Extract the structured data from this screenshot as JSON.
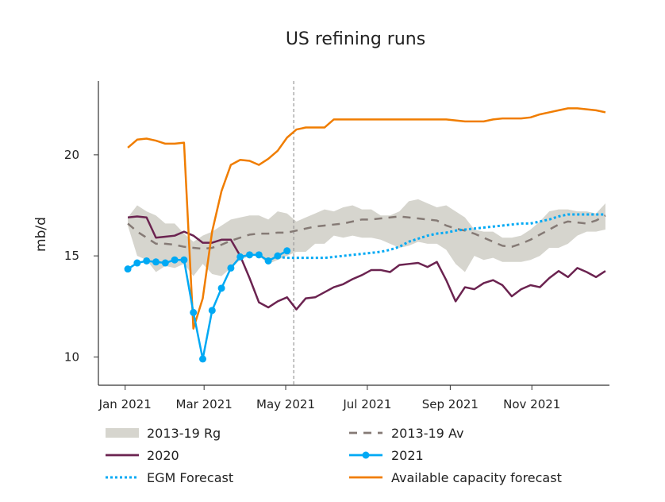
{
  "chart_data": {
    "type": "line",
    "title": "US refining runs",
    "xlabel": "",
    "ylabel": "mb/d",
    "xlim": [
      "2020-12-12",
      "2021-12-29"
    ],
    "ylim": [
      8.6,
      23.65
    ],
    "grid": false,
    "legend_placement": "bottom",
    "x_ticks": [
      {
        "date": "2021-01-01",
        "label": "Jan 2021"
      },
      {
        "date": "2021-03-01",
        "label": "Mar 2021"
      },
      {
        "date": "2021-05-01",
        "label": "May 2021"
      },
      {
        "date": "2021-07-01",
        "label": "Jul 2021"
      },
      {
        "date": "2021-09-01",
        "label": "Sep 2021"
      },
      {
        "date": "2021-11-01",
        "label": "Nov 2021"
      }
    ],
    "y_ticks": [
      {
        "value": 10,
        "label": "10"
      },
      {
        "value": 15,
        "label": "15"
      },
      {
        "value": 20,
        "label": "20"
      }
    ],
    "forecast_start_line": "2021-05-07",
    "x": [
      "2021-01-03",
      "2021-01-10",
      "2021-01-17",
      "2021-01-24",
      "2021-01-31",
      "2021-02-07",
      "2021-02-14",
      "2021-02-21",
      "2021-02-28",
      "2021-03-07",
      "2021-03-14",
      "2021-03-21",
      "2021-03-28",
      "2021-04-04",
      "2021-04-11",
      "2021-04-18",
      "2021-04-25",
      "2021-05-02",
      "2021-05-09",
      "2021-05-16",
      "2021-05-23",
      "2021-05-30",
      "2021-06-06",
      "2021-06-13",
      "2021-06-20",
      "2021-06-27",
      "2021-07-04",
      "2021-07-11",
      "2021-07-18",
      "2021-07-25",
      "2021-08-01",
      "2021-08-08",
      "2021-08-15",
      "2021-08-22",
      "2021-08-29",
      "2021-09-05",
      "2021-09-12",
      "2021-09-19",
      "2021-09-26",
      "2021-10-03",
      "2021-10-10",
      "2021-10-17",
      "2021-10-24",
      "2021-10-31",
      "2021-11-07",
      "2021-11-14",
      "2021-11-21",
      "2021-11-28",
      "2021-12-05",
      "2021-12-12",
      "2021-12-19",
      "2021-12-26"
    ],
    "band": {
      "name": "2013-19 Rg",
      "color": "#d6d5ce",
      "upper": [
        16.9,
        17.5,
        17.2,
        17.0,
        16.6,
        16.6,
        16.1,
        15.7,
        16.0,
        16.2,
        16.5,
        16.8,
        16.9,
        17.0,
        17.0,
        16.8,
        17.2,
        17.1,
        16.7,
        16.9,
        17.1,
        17.3,
        17.2,
        17.4,
        17.5,
        17.3,
        17.3,
        17.0,
        17.0,
        17.2,
        17.7,
        17.8,
        17.6,
        17.4,
        17.5,
        17.2,
        16.9,
        16.3,
        16.2,
        16.2,
        15.9,
        15.9,
        16.0,
        16.3,
        16.7,
        17.2,
        17.3,
        17.3,
        17.2,
        17.2,
        17.1,
        17.6
      ],
      "lower": [
        16.5,
        15.0,
        14.8,
        14.2,
        14.5,
        14.4,
        14.6,
        14.0,
        14.6,
        14.1,
        14.0,
        14.4,
        14.8,
        15.0,
        15.0,
        14.6,
        14.8,
        15.0,
        15.2,
        15.2,
        15.6,
        15.6,
        16.0,
        15.9,
        16.0,
        15.9,
        15.9,
        15.8,
        15.6,
        15.4,
        15.5,
        15.7,
        15.6,
        15.6,
        15.3,
        14.6,
        14.2,
        15.0,
        14.8,
        14.9,
        14.7,
        14.7,
        14.7,
        14.8,
        15.0,
        15.4,
        15.4,
        15.6,
        16.0,
        16.2,
        16.2,
        16.3
      ]
    },
    "series": [
      {
        "name": "2013-19 Av",
        "color": "#857a75",
        "style": "dashed",
        "values": [
          16.6,
          16.2,
          15.9,
          15.6,
          15.6,
          15.55,
          15.45,
          15.4,
          15.35,
          15.4,
          15.55,
          15.75,
          15.9,
          16.05,
          16.1,
          16.1,
          16.15,
          16.15,
          16.25,
          16.35,
          16.45,
          16.5,
          16.55,
          16.6,
          16.7,
          16.8,
          16.8,
          16.85,
          16.9,
          16.95,
          16.9,
          16.85,
          16.8,
          16.75,
          16.5,
          16.35,
          16.25,
          16.1,
          15.9,
          15.7,
          15.5,
          15.45,
          15.6,
          15.8,
          16.05,
          16.3,
          16.55,
          16.7,
          16.65,
          16.6,
          16.75,
          17.0
        ]
      },
      {
        "name": "2020",
        "color": "#6b2350",
        "style": "solid",
        "values": [
          16.9,
          16.95,
          16.9,
          15.9,
          15.95,
          16.0,
          16.2,
          16.0,
          15.65,
          15.65,
          15.8,
          15.8,
          15.0,
          13.9,
          12.7,
          12.45,
          12.75,
          12.95,
          12.35,
          12.9,
          12.95,
          13.2,
          13.45,
          13.6,
          13.85,
          14.05,
          14.3,
          14.3,
          14.2,
          14.55,
          14.6,
          14.65,
          14.45,
          14.7,
          13.8,
          12.75,
          13.45,
          13.35,
          13.65,
          13.8,
          13.55,
          13.0,
          13.35,
          13.55,
          13.45,
          13.9,
          14.25,
          13.95,
          14.4,
          14.2,
          13.95,
          14.25
        ]
      },
      {
        "name": "EGM Forecast",
        "color": "#00a9f4",
        "style": "dotted",
        "values": [
          null,
          null,
          null,
          null,
          null,
          null,
          null,
          null,
          null,
          null,
          null,
          null,
          null,
          null,
          null,
          null,
          14.95,
          14.9,
          14.9,
          14.9,
          14.9,
          14.9,
          14.95,
          15.0,
          15.05,
          15.1,
          15.15,
          15.2,
          15.3,
          15.45,
          15.7,
          15.85,
          16.0,
          16.1,
          16.15,
          16.25,
          16.3,
          16.35,
          16.4,
          16.45,
          16.5,
          16.55,
          16.6,
          16.6,
          16.7,
          16.8,
          16.95,
          17.05,
          17.05,
          17.05,
          17.05,
          17.05
        ]
      },
      {
        "name": "Available capacity forecast",
        "color": "#f07d00",
        "style": "solid",
        "values": [
          20.35,
          20.75,
          20.8,
          20.7,
          20.55,
          20.55,
          20.6,
          11.4,
          12.9,
          16.2,
          18.2,
          19.5,
          19.75,
          19.7,
          19.5,
          19.8,
          20.2,
          20.85,
          21.25,
          21.35,
          21.35,
          21.35,
          21.75,
          21.75,
          21.75,
          21.75,
          21.75,
          21.75,
          21.75,
          21.75,
          21.75,
          21.75,
          21.75,
          21.75,
          21.75,
          21.7,
          21.65,
          21.65,
          21.65,
          21.75,
          21.8,
          21.8,
          21.8,
          21.85,
          22.0,
          22.1,
          22.2,
          22.3,
          22.3,
          22.25,
          22.2,
          22.1
        ]
      },
      {
        "name": "2021",
        "color": "#00a9f4",
        "style": "solid-markers",
        "values": [
          14.35,
          14.65,
          14.75,
          14.7,
          14.65,
          14.8,
          14.8,
          12.2,
          9.9,
          12.3,
          13.4,
          14.4,
          14.95,
          15.05,
          15.05,
          14.75,
          15.0,
          15.25,
          null,
          null,
          null,
          null,
          null,
          null,
          null,
          null,
          null,
          null,
          null,
          null,
          null,
          null,
          null,
          null,
          null,
          null,
          null,
          null,
          null,
          null,
          null,
          null,
          null,
          null,
          null,
          null,
          null,
          null,
          null,
          null,
          null,
          null
        ]
      }
    ],
    "legend": [
      {
        "label": "2013-19 Rg",
        "symbol": "band",
        "color": "#d6d5ce"
      },
      {
        "label": "2013-19 Av",
        "symbol": "dashed",
        "color": "#857a75"
      },
      {
        "label": "2020",
        "symbol": "solid",
        "color": "#6b2350"
      },
      {
        "label": "2021",
        "symbol": "solid-markers",
        "color": "#00a9f4"
      },
      {
        "label": "EGM Forecast",
        "symbol": "dotted",
        "color": "#00a9f4"
      },
      {
        "label": "Available capacity forecast",
        "symbol": "solid",
        "color": "#f07d00"
      }
    ]
  }
}
